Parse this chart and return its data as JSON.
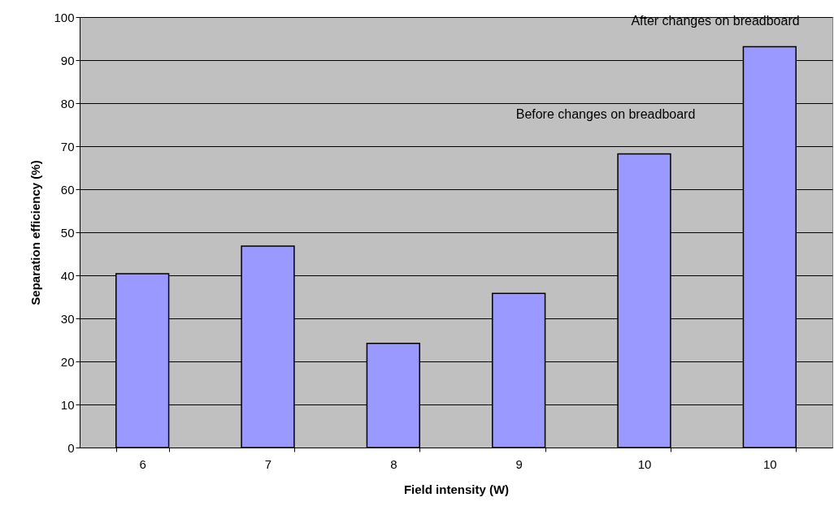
{
  "chart_data": {
    "type": "bar",
    "xlabel": "Field intensity (W)",
    "ylabel": "Separation efficiency (%)",
    "categories": [
      "6",
      "7",
      "8",
      "9",
      "10",
      "10"
    ],
    "values": [
      40.4,
      46.8,
      24.2,
      35.8,
      68.2,
      93.1
    ],
    "color": "#9999ff",
    "ylim": [
      0,
      100
    ],
    "yticks": [
      0,
      10,
      20,
      30,
      40,
      50,
      60,
      70,
      80,
      90,
      100
    ],
    "grid": "y",
    "annotations": [
      "Before changes on breadboard",
      "After changes on breadboard"
    ]
  }
}
